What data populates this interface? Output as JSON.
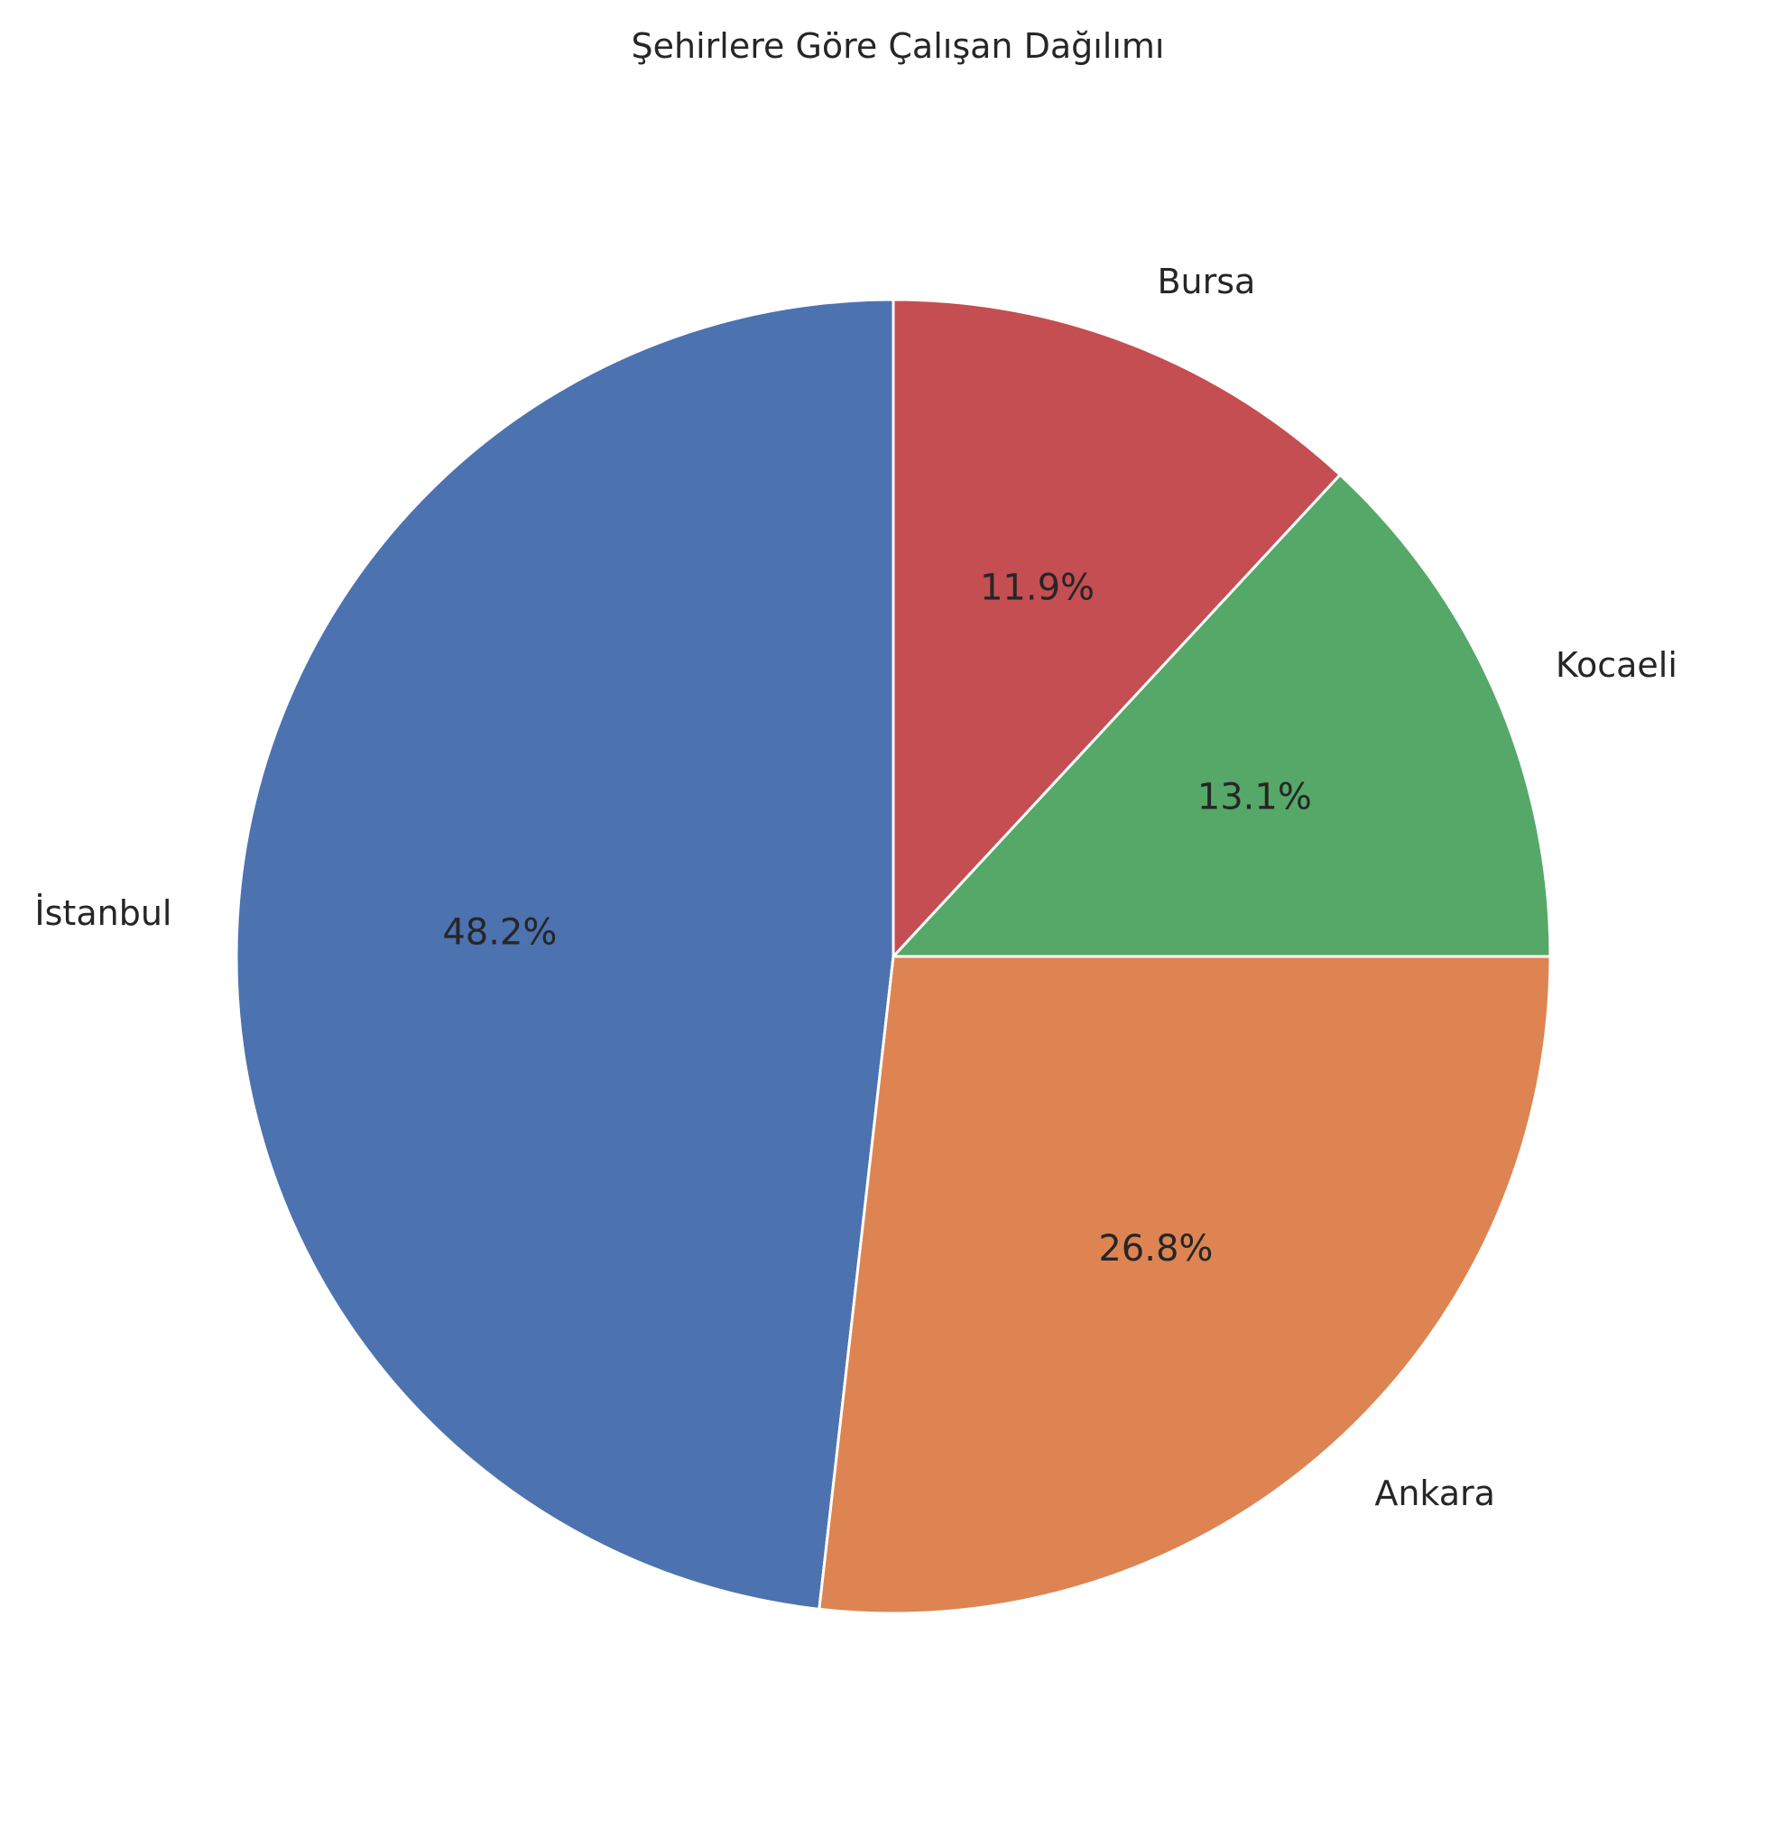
{
  "chart_data": {
    "type": "pie",
    "title": "Şehirlere Göre Çalışan Dağılımı",
    "start_angle_deg": 90,
    "direction": "counterclockwise",
    "slices": [
      {
        "label": "İstanbul",
        "value": 48.2,
        "pct_label": "48.2%",
        "color": "#4c72b0"
      },
      {
        "label": "Ankara",
        "value": 26.8,
        "pct_label": "26.8%",
        "color": "#dd8452"
      },
      {
        "label": "Kocaeli",
        "value": 13.1,
        "pct_label": "13.1%",
        "color": "#55a868"
      },
      {
        "label": "Bursa",
        "value": 11.9,
        "pct_label": "11.9%",
        "color": "#c44e52"
      }
    ],
    "edge_color": "#ffffff",
    "legend": "none"
  }
}
